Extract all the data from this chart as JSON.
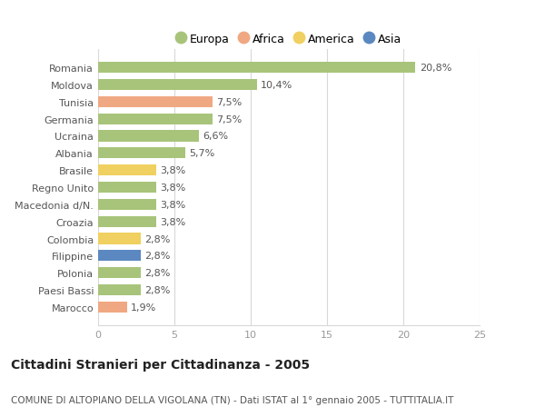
{
  "categories": [
    "Romania",
    "Moldova",
    "Tunisia",
    "Germania",
    "Ucraina",
    "Albania",
    "Brasile",
    "Regno Unito",
    "Macedonia d/N.",
    "Croazia",
    "Colombia",
    "Filippine",
    "Polonia",
    "Paesi Bassi",
    "Marocco"
  ],
  "values": [
    20.8,
    10.4,
    7.5,
    7.5,
    6.6,
    5.7,
    3.8,
    3.8,
    3.8,
    3.8,
    2.8,
    2.8,
    2.8,
    2.8,
    1.9
  ],
  "labels": [
    "20,8%",
    "10,4%",
    "7,5%",
    "7,5%",
    "6,6%",
    "5,7%",
    "3,8%",
    "3,8%",
    "3,8%",
    "3,8%",
    "2,8%",
    "2,8%",
    "2,8%",
    "2,8%",
    "1,9%"
  ],
  "continents": [
    "Europa",
    "Europa",
    "Africa",
    "Europa",
    "Europa",
    "Europa",
    "America",
    "Europa",
    "Europa",
    "Europa",
    "America",
    "Asia",
    "Europa",
    "Europa",
    "Africa"
  ],
  "colors": {
    "Europa": "#a8c47a",
    "Africa": "#f0a882",
    "America": "#f0d060",
    "Asia": "#5b88c0"
  },
  "legend_labels": [
    "Europa",
    "Africa",
    "America",
    "Asia"
  ],
  "xlim": [
    0,
    25
  ],
  "xticks": [
    0,
    5,
    10,
    15,
    20,
    25
  ],
  "title": "Cittadini Stranieri per Cittadinanza - 2005",
  "subtitle": "COMUNE DI ALTOPIANO DELLA VIGOLANA (TN) - Dati ISTAT al 1° gennaio 2005 - TUTTITALIA.IT",
  "bg_color": "#ffffff",
  "grid_color": "#d8d8d8",
  "bar_height": 0.65,
  "label_fontsize": 8,
  "tick_fontsize": 8,
  "title_fontsize": 10,
  "subtitle_fontsize": 7.5,
  "legend_fontsize": 9
}
